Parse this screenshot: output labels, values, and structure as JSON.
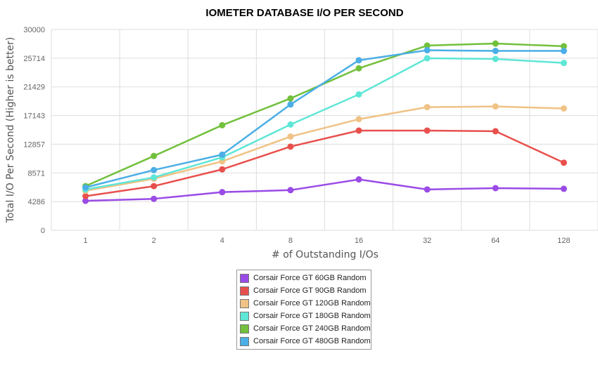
{
  "chart_data": {
    "type": "line",
    "title": "IOMETER DATABASE I/O PER SECOND",
    "xlabel": "# of Outstanding I/Os",
    "ylabel": "Total I/O Per Second (Higher is better)",
    "categories": [
      "1",
      "2",
      "4",
      "8",
      "16",
      "32",
      "64",
      "128"
    ],
    "y_ticks": [
      "0",
      "4286",
      "8571",
      "12857",
      "17143",
      "21429",
      "25714",
      "30000"
    ],
    "ylim": [
      0,
      30000
    ],
    "grid": true,
    "legend_position": "bottom",
    "series": [
      {
        "name": "Corsair Force GT 60GB Random",
        "color": "#9a4be6",
        "values": [
          4400,
          4700,
          5700,
          6000,
          7600,
          6100,
          6300,
          6200
        ]
      },
      {
        "name": "Corsair Force GT 90GB Random",
        "color": "#e8504d",
        "values": [
          5100,
          6600,
          9100,
          12500,
          14900,
          14900,
          14800,
          10100
        ]
      },
      {
        "name": "Corsair Force GT 120GB Random",
        "color": "#f0c285",
        "values": [
          5900,
          7700,
          10300,
          14000,
          16600,
          18400,
          18500,
          18200
        ]
      },
      {
        "name": "Corsair Force GT 180GB Random",
        "color": "#5ee6d6",
        "values": [
          6100,
          7900,
          10900,
          15800,
          20300,
          25700,
          25600,
          25000
        ]
      },
      {
        "name": "Corsair Force GT 240GB Random",
        "color": "#72c03c",
        "values": [
          6600,
          11100,
          15700,
          19700,
          24200,
          27600,
          27900,
          27500
        ]
      },
      {
        "name": "Corsair Force GT 480GB Random",
        "color": "#4baee6",
        "values": [
          6400,
          9000,
          11300,
          18800,
          25400,
          26900,
          26800,
          26800
        ]
      }
    ]
  }
}
